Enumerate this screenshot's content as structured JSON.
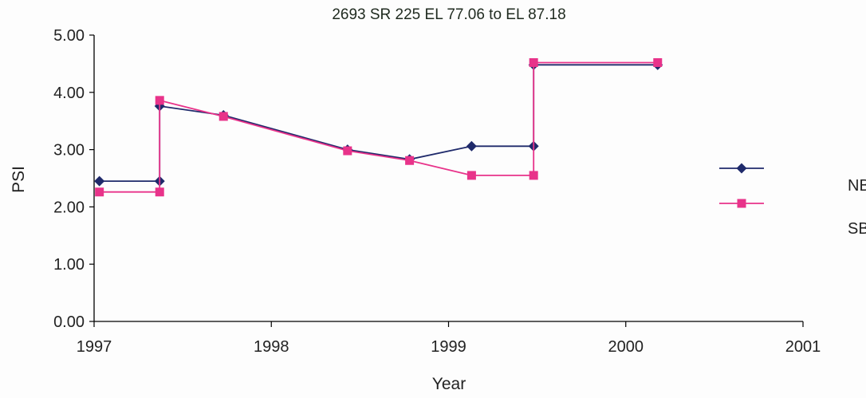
{
  "chart_data": {
    "type": "line",
    "title": "2693 SR 225 EL 77.06 to EL 87.18",
    "xlabel": "Year",
    "ylabel": "PSI",
    "xlim": [
      1997,
      2001
    ],
    "ylim": [
      0,
      5
    ],
    "x_ticks": [
      1997,
      1998,
      1999,
      2000,
      2001
    ],
    "x_tick_labels": [
      "1997",
      "1998",
      "1999",
      "2000",
      "2001"
    ],
    "y_ticks": [
      0,
      1,
      2,
      3,
      4,
      5
    ],
    "y_tick_labels": [
      "0.00",
      "1.00",
      "2.00",
      "3.00",
      "4.00",
      "5.00"
    ],
    "grid": false,
    "legend_position": "right",
    "series": [
      {
        "name": "NB",
        "color": "#1f2a6b",
        "marker": "diamond",
        "points": [
          [
            1997.03,
            2.45
          ],
          [
            1997.37,
            2.45
          ],
          [
            1997.37,
            3.76
          ],
          [
            1997.73,
            3.6
          ],
          [
            1998.43,
            3.0
          ],
          [
            1998.78,
            2.83
          ],
          [
            1999.13,
            3.06
          ],
          [
            1999.48,
            3.06
          ],
          [
            1999.48,
            4.48
          ],
          [
            2000.18,
            4.48
          ]
        ]
      },
      {
        "name": "SB",
        "color": "#e8338a",
        "marker": "square",
        "points": [
          [
            1997.03,
            2.26
          ],
          [
            1997.37,
            2.26
          ],
          [
            1997.37,
            3.86
          ],
          [
            1997.73,
            3.58
          ],
          [
            1998.43,
            2.98
          ],
          [
            1998.78,
            2.81
          ],
          [
            1999.13,
            2.55
          ],
          [
            1999.48,
            2.55
          ],
          [
            1999.48,
            4.52
          ],
          [
            2000.18,
            4.52
          ]
        ]
      }
    ]
  }
}
